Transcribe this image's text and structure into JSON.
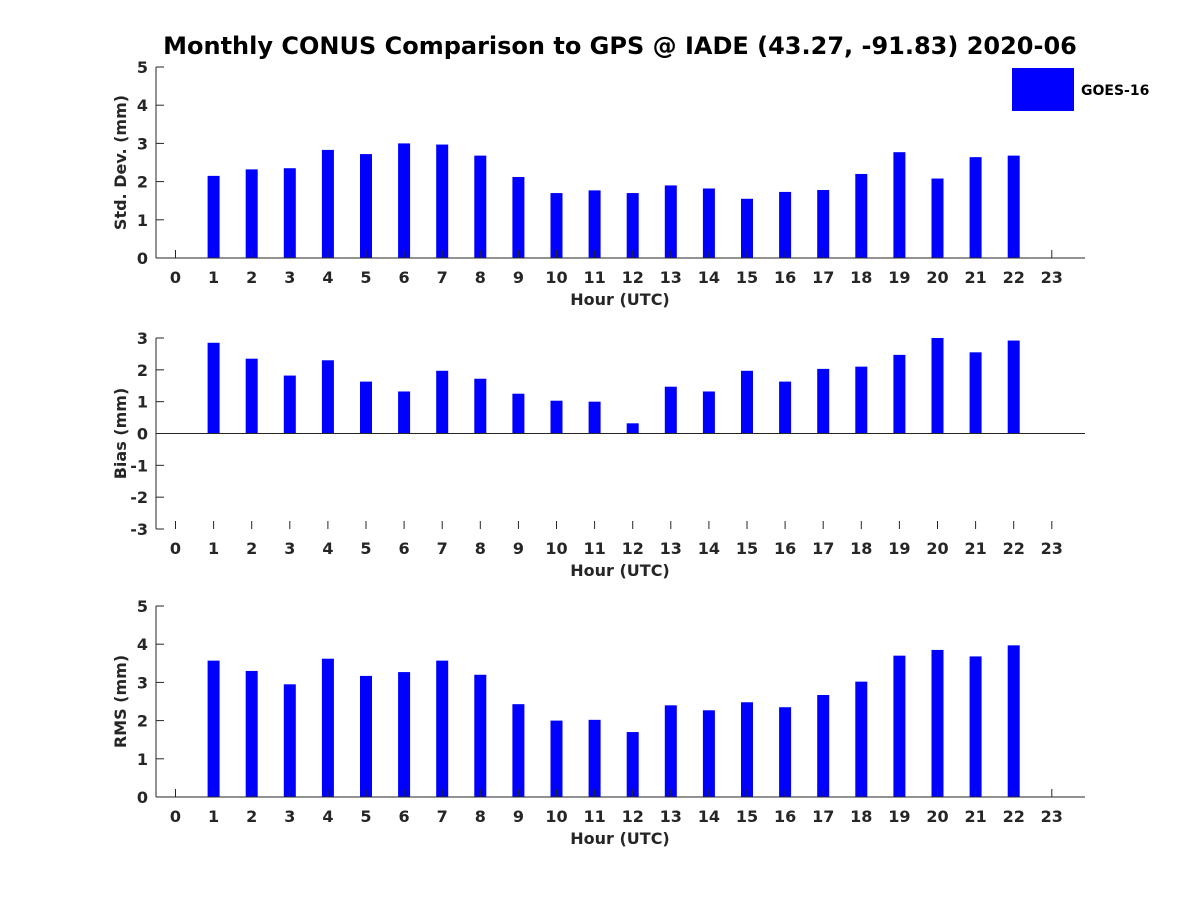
{
  "title": "Monthly CONUS Comparison to GPS @ IADE (43.27, -91.83) 2020-06",
  "legend": {
    "label": "GOES-16",
    "color": "#0000ff"
  },
  "chart_data": [
    {
      "type": "bar",
      "series": [
        {
          "name": "GOES-16",
          "values": [
            null,
            2.15,
            2.32,
            2.35,
            2.83,
            2.72,
            3.0,
            2.97,
            2.68,
            2.12,
            1.7,
            1.77,
            1.7,
            1.9,
            1.82,
            1.55,
            1.73,
            1.78,
            2.2,
            2.77,
            2.08,
            2.64,
            2.68,
            null
          ]
        }
      ],
      "categories": [
        "0",
        "1",
        "2",
        "3",
        "4",
        "5",
        "6",
        "7",
        "8",
        "9",
        "10",
        "11",
        "12",
        "13",
        "14",
        "15",
        "16",
        "17",
        "18",
        "19",
        "20",
        "21",
        "22",
        "23"
      ],
      "xlabel": "Hour (UTC)",
      "ylabel": "Std. Dev. (mm)",
      "ylim": [
        0,
        5
      ],
      "yticks": [
        "0",
        "1",
        "2",
        "3",
        "4",
        "5"
      ],
      "color": "#0000ff"
    },
    {
      "type": "bar",
      "series": [
        {
          "name": "GOES-16",
          "values": [
            null,
            2.85,
            2.35,
            1.82,
            2.3,
            1.63,
            1.32,
            1.97,
            1.72,
            1.25,
            1.03,
            1.0,
            0.32,
            1.47,
            1.32,
            1.97,
            1.63,
            2.03,
            2.1,
            2.47,
            3.0,
            2.55,
            2.92,
            null
          ]
        }
      ],
      "categories": [
        "0",
        "1",
        "2",
        "3",
        "4",
        "5",
        "6",
        "7",
        "8",
        "9",
        "10",
        "11",
        "12",
        "13",
        "14",
        "15",
        "16",
        "17",
        "18",
        "19",
        "20",
        "21",
        "22",
        "23"
      ],
      "xlabel": "Hour (UTC)",
      "ylabel": "Bias (mm)",
      "ylim": [
        -3,
        3
      ],
      "yticks": [
        "-3",
        "-2",
        "-1",
        "0",
        "1",
        "2",
        "3"
      ],
      "color": "#0000ff"
    },
    {
      "type": "bar",
      "series": [
        {
          "name": "GOES-16",
          "values": [
            null,
            3.57,
            3.3,
            2.95,
            3.62,
            3.17,
            3.27,
            3.57,
            3.2,
            2.43,
            2.0,
            2.02,
            1.7,
            2.4,
            2.27,
            2.48,
            2.35,
            2.67,
            3.02,
            3.7,
            3.85,
            3.68,
            3.97,
            null
          ]
        }
      ],
      "categories": [
        "0",
        "1",
        "2",
        "3",
        "4",
        "5",
        "6",
        "7",
        "8",
        "9",
        "10",
        "11",
        "12",
        "13",
        "14",
        "15",
        "16",
        "17",
        "18",
        "19",
        "20",
        "21",
        "22",
        "23"
      ],
      "xlabel": "Hour (UTC)",
      "ylabel": "RMS (mm)",
      "ylim": [
        0,
        5
      ],
      "yticks": [
        "0",
        "1",
        "2",
        "3",
        "4",
        "5"
      ],
      "color": "#0000ff"
    }
  ]
}
